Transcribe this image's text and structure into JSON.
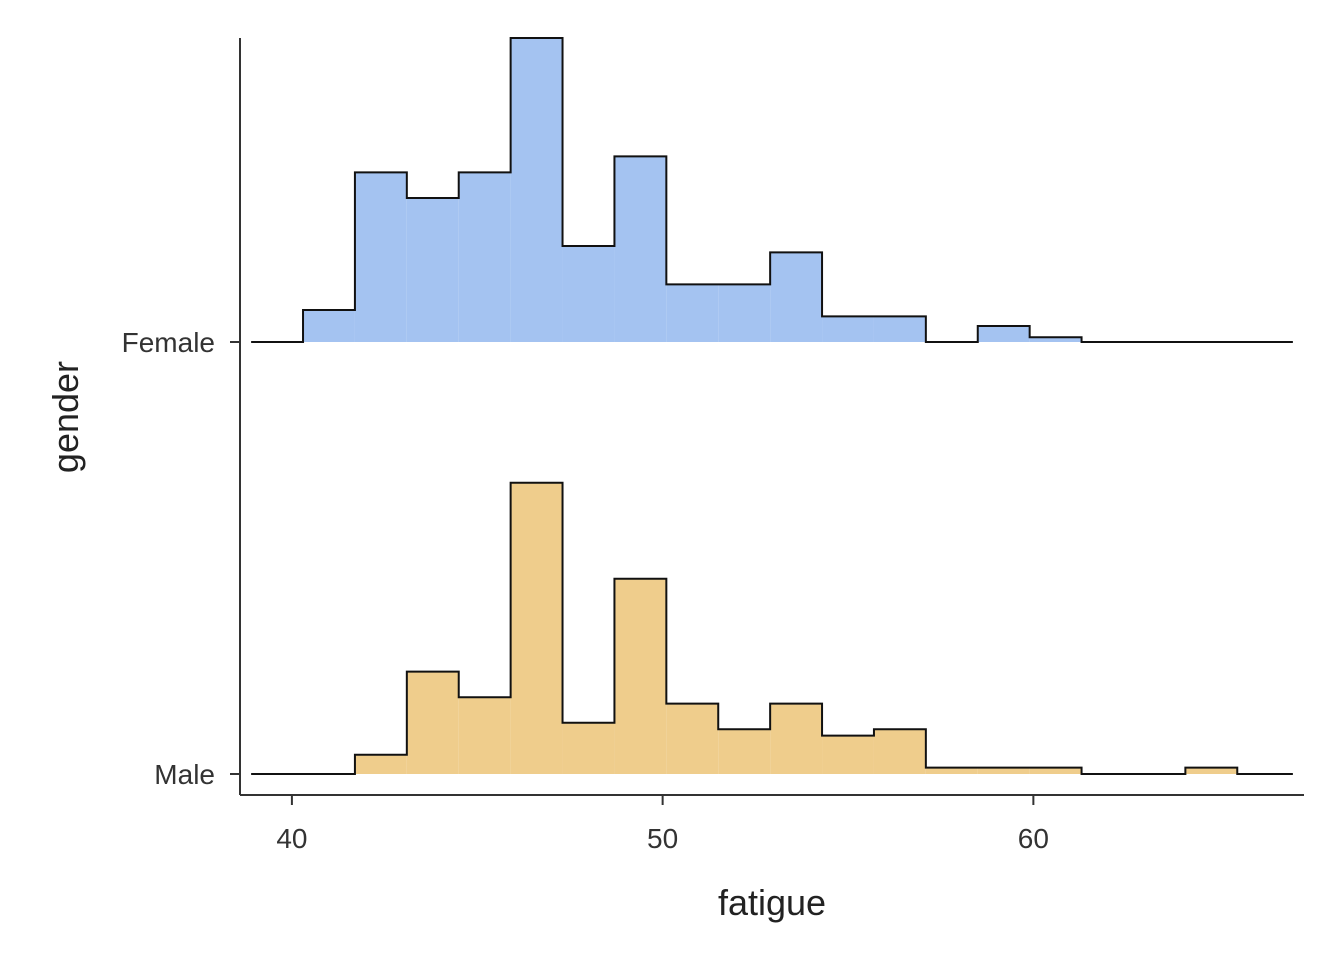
{
  "chart_data": {
    "type": "ridgeline-histogram",
    "xlabel": "fatigue",
    "ylabel": "gender",
    "xlim": [
      38.6,
      67.3
    ],
    "xticks": [
      40,
      50,
      60
    ],
    "x_tick_labels": [
      "40",
      "50",
      "60"
    ],
    "categories": [
      "Female",
      "Male"
    ],
    "bin_edges": [
      38.9,
      40.3,
      41.7,
      43.1,
      44.5,
      45.9,
      47.3,
      48.7,
      50.1,
      51.5,
      52.9,
      54.3,
      55.7,
      57.1,
      58.5,
      59.9,
      61.3,
      62.7,
      64.1,
      65.5,
      67.0
    ],
    "series": [
      {
        "name": "Female",
        "color": "#a4c3f1",
        "values": [
          0,
          1,
          5.3,
          4.5,
          5.3,
          9.5,
          3.0,
          5.8,
          1.8,
          1.8,
          2.8,
          0.8,
          0.8,
          0,
          0.5,
          0.15,
          0,
          0,
          0,
          0
        ]
      },
      {
        "name": "Male",
        "color": "#efcd8c",
        "values": [
          0,
          0,
          0.6,
          3.2,
          2.4,
          9.1,
          1.6,
          6.1,
          2.2,
          1.4,
          2.2,
          1.2,
          1.4,
          0.2,
          0.2,
          0.2,
          0,
          0,
          0.2,
          0
        ]
      }
    ],
    "grid": false,
    "legend": "none"
  }
}
